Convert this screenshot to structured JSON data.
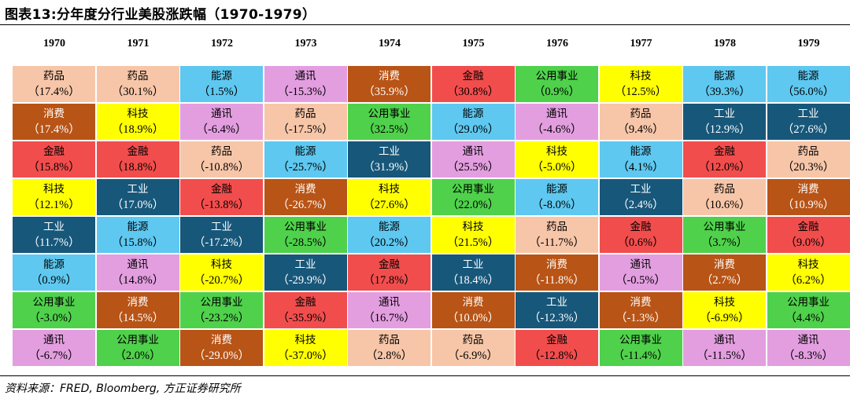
{
  "title": "图表13:分年度分行业美股涨跌幅（1970-1979）",
  "source": "资料来源：FRED, Bloomberg, 方正证券研究所",
  "colors": {
    "药品": "#f7c6a8",
    "消费": "#b85416",
    "金融": "#f24d4d",
    "科技": "#ffff00",
    "工业": "#17577a",
    "能源": "#5ec8f0",
    "公用事业": "#4fd14b",
    "通讯": "#e39ee0"
  },
  "text_colors": {
    "药品": "#000000",
    "消费": "#ffffff",
    "金融": "#000000",
    "科技": "#000000",
    "工业": "#ffffff",
    "能源": "#000000",
    "公用事业": "#000000",
    "通讯": "#000000"
  },
  "chart_data": {
    "type": "table",
    "years": [
      "1970",
      "1971",
      "1972",
      "1973",
      "1974",
      "1975",
      "1976",
      "1977",
      "1978",
      "1979"
    ],
    "columns": [
      [
        {
          "sector": "药品",
          "ret": "（17.4%）",
          "value": 17.4
        },
        {
          "sector": "消费",
          "ret": "（17.4%）",
          "value": 17.4
        },
        {
          "sector": "金融",
          "ret": "（15.8%）",
          "value": 15.8
        },
        {
          "sector": "科技",
          "ret": "（12.1%）",
          "value": 12.1
        },
        {
          "sector": "工业",
          "ret": "（11.7%）",
          "value": 11.7
        },
        {
          "sector": "能源",
          "ret": "（0.9%）",
          "value": 0.9
        },
        {
          "sector": "公用事业",
          "ret": "（-3.0%）",
          "value": -3.0
        },
        {
          "sector": "通讯",
          "ret": "（-6.7%）",
          "value": -6.7
        }
      ],
      [
        {
          "sector": "药品",
          "ret": "（30.1%）",
          "value": 30.1
        },
        {
          "sector": "科技",
          "ret": "（18.9%）",
          "value": 18.9
        },
        {
          "sector": "金融",
          "ret": "（18.8%）",
          "value": 18.8
        },
        {
          "sector": "工业",
          "ret": "（17.0%）",
          "value": 17.0
        },
        {
          "sector": "能源",
          "ret": "（15.8%）",
          "value": 15.8
        },
        {
          "sector": "通讯",
          "ret": "（14.8%）",
          "value": 14.8
        },
        {
          "sector": "消费",
          "ret": "（14.5%）",
          "value": 14.5
        },
        {
          "sector": "公用事业",
          "ret": "（2.0%）",
          "value": 2.0
        }
      ],
      [
        {
          "sector": "能源",
          "ret": "（1.5%）",
          "value": 1.5
        },
        {
          "sector": "通讯",
          "ret": "（-6.4%）",
          "value": -6.4
        },
        {
          "sector": "药品",
          "ret": "（-10.8%）",
          "value": -10.8
        },
        {
          "sector": "金融",
          "ret": "（-13.8%）",
          "value": -13.8
        },
        {
          "sector": "工业",
          "ret": "（-17.2%）",
          "value": -17.2
        },
        {
          "sector": "科技",
          "ret": "（-20.7%）",
          "value": -20.7
        },
        {
          "sector": "公用事业",
          "ret": "（-23.2%）",
          "value": -23.2
        },
        {
          "sector": "消费",
          "ret": "（-29.0%）",
          "value": -29.0
        }
      ],
      [
        {
          "sector": "通讯",
          "ret": "（-15.3%）",
          "value": -15.3
        },
        {
          "sector": "药品",
          "ret": "（-17.5%）",
          "value": -17.5
        },
        {
          "sector": "能源",
          "ret": "（-25.7%）",
          "value": -25.7
        },
        {
          "sector": "消费",
          "ret": "（-26.7%）",
          "value": -26.7
        },
        {
          "sector": "公用事业",
          "ret": "（-28.5%）",
          "value": -28.5
        },
        {
          "sector": "工业",
          "ret": "（-29.9%）",
          "value": -29.9
        },
        {
          "sector": "金融",
          "ret": "（-35.9%）",
          "value": -35.9
        },
        {
          "sector": "科技",
          "ret": "（-37.0%）",
          "value": -37.0
        }
      ],
      [
        {
          "sector": "消费",
          "ret": "（35.9%）",
          "value": 35.9
        },
        {
          "sector": "公用事业",
          "ret": "（32.5%）",
          "value": 32.5
        },
        {
          "sector": "工业",
          "ret": "（31.9%）",
          "value": 31.9
        },
        {
          "sector": "科技",
          "ret": "（27.6%）",
          "value": 27.6
        },
        {
          "sector": "能源",
          "ret": "（20.2%）",
          "value": 20.2
        },
        {
          "sector": "金融",
          "ret": "（17.8%）",
          "value": 17.8
        },
        {
          "sector": "通讯",
          "ret": "（16.7%）",
          "value": 16.7
        },
        {
          "sector": "药品",
          "ret": "（2.8%）",
          "value": 2.8
        }
      ],
      [
        {
          "sector": "金融",
          "ret": "（30.8%）",
          "value": 30.8
        },
        {
          "sector": "能源",
          "ret": "（29.0%）",
          "value": 29.0
        },
        {
          "sector": "通讯",
          "ret": "（25.5%）",
          "value": 25.5
        },
        {
          "sector": "公用事业",
          "ret": "（22.0%）",
          "value": 22.0
        },
        {
          "sector": "科技",
          "ret": "（21.5%）",
          "value": 21.5
        },
        {
          "sector": "工业",
          "ret": "（18.4%）",
          "value": 18.4
        },
        {
          "sector": "消费",
          "ret": "（10.0%）",
          "value": 10.0
        },
        {
          "sector": "药品",
          "ret": "（-6.9%）",
          "value": -6.9
        }
      ],
      [
        {
          "sector": "公用事业",
          "ret": "（0.9%）",
          "value": 0.9
        },
        {
          "sector": "通讯",
          "ret": "（-4.6%）",
          "value": -4.6
        },
        {
          "sector": "科技",
          "ret": "（-5.0%）",
          "value": -5.0
        },
        {
          "sector": "能源",
          "ret": "（-8.0%）",
          "value": -8.0
        },
        {
          "sector": "药品",
          "ret": "（-11.7%）",
          "value": -11.7
        },
        {
          "sector": "消费",
          "ret": "（-11.8%）",
          "value": -11.8
        },
        {
          "sector": "工业",
          "ret": "（-12.3%）",
          "value": -12.3
        },
        {
          "sector": "金融",
          "ret": "（-12.8%）",
          "value": -12.8
        }
      ],
      [
        {
          "sector": "科技",
          "ret": "（12.5%）",
          "value": 12.5
        },
        {
          "sector": "药品",
          "ret": "（9.4%）",
          "value": 9.4
        },
        {
          "sector": "能源",
          "ret": "（4.1%）",
          "value": 4.1
        },
        {
          "sector": "工业",
          "ret": "（2.4%）",
          "value": 2.4
        },
        {
          "sector": "金融",
          "ret": "（0.6%）",
          "value": 0.6
        },
        {
          "sector": "通讯",
          "ret": "（-0.5%）",
          "value": -0.5
        },
        {
          "sector": "消费",
          "ret": "（-1.3%）",
          "value": -1.3
        },
        {
          "sector": "公用事业",
          "ret": "（-11.4%）",
          "value": -11.4
        }
      ],
      [
        {
          "sector": "能源",
          "ret": "（39.3%）",
          "value": 39.3
        },
        {
          "sector": "工业",
          "ret": "（12.9%）",
          "value": 12.9
        },
        {
          "sector": "金融",
          "ret": "（12.0%）",
          "value": 12.0
        },
        {
          "sector": "药品",
          "ret": "（10.6%）",
          "value": 10.6
        },
        {
          "sector": "公用事业",
          "ret": "（3.7%）",
          "value": 3.7
        },
        {
          "sector": "消费",
          "ret": "（2.7%）",
          "value": 2.7
        },
        {
          "sector": "科技",
          "ret": "（-6.9%）",
          "value": -6.9
        },
        {
          "sector": "通讯",
          "ret": "（-11.5%）",
          "value": -11.5
        }
      ],
      [
        {
          "sector": "能源",
          "ret": "（56.0%）",
          "value": 56.0
        },
        {
          "sector": "工业",
          "ret": "（27.6%）",
          "value": 27.6
        },
        {
          "sector": "药品",
          "ret": "（20.3%）",
          "value": 20.3
        },
        {
          "sector": "消费",
          "ret": "（10.9%）",
          "value": 10.9
        },
        {
          "sector": "金融",
          "ret": "（9.0%）",
          "value": 9.0
        },
        {
          "sector": "科技",
          "ret": "（6.2%）",
          "value": 6.2
        },
        {
          "sector": "公用事业",
          "ret": "（4.4%）",
          "value": 4.4
        },
        {
          "sector": "通讯",
          "ret": "（-8.3%）",
          "value": -8.3
        }
      ]
    ]
  }
}
